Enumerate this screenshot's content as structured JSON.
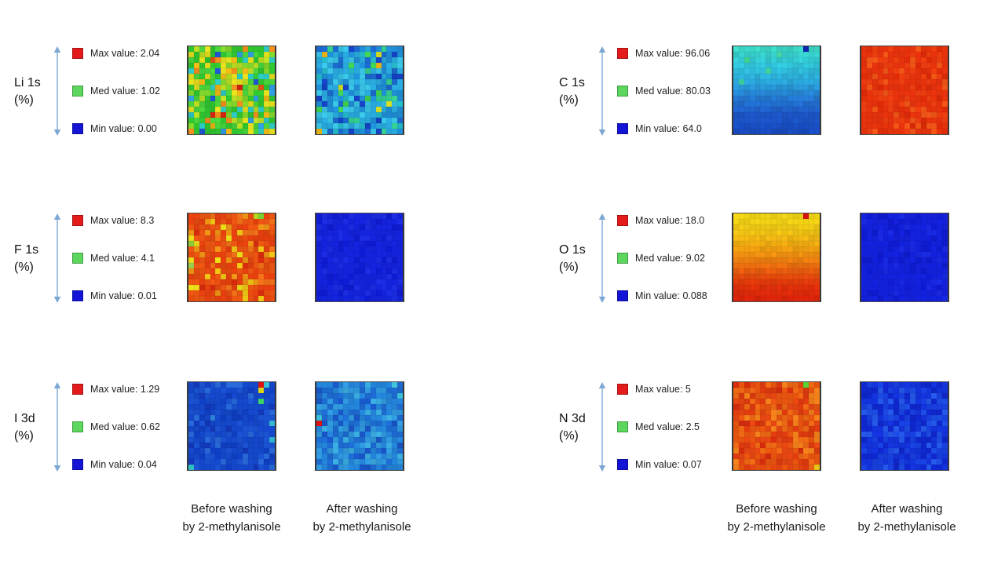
{
  "figure": {
    "captions": {
      "before_line1": "Before washing",
      "before_line2": "by 2-methylanisole",
      "after_line1": "After washing",
      "after_line2": "by 2-methylanisole"
    },
    "arrow_color": "#7aa7d4"
  },
  "chart_data": {
    "type": "heatmap",
    "description": "XPS elemental surface mapping (atomic %) before and after washing by 2-methylanisole; six elements, each with a before/after 16x16 color map and a max/med/min legend",
    "legend_position": "left of each map pair",
    "columns_order": [
      [
        "Li 1s",
        "F 1s",
        "I 3d"
      ],
      [
        "C 1s",
        "O 1s",
        "N 3d"
      ]
    ],
    "panels": [
      {
        "element": "Li 1s",
        "unit": "(%)",
        "max": 2.04,
        "med": 1.02,
        "min": 0.0,
        "legend": [
          {
            "color": "#e31b1b",
            "label": "Max value: 2.04"
          },
          {
            "color": "#5cd65c",
            "label": "Med value: 1.02"
          },
          {
            "color": "#1414d6",
            "label": "Min value: 0.00"
          }
        ],
        "before": {
          "pattern": "random",
          "grid": [
            16,
            16
          ],
          "seed": 101,
          "jitter": 0.05,
          "colors": [
            [
              "#2fc32f",
              0.26
            ],
            [
              "#49d23b",
              0.14
            ],
            [
              "#7fd42a",
              0.1
            ],
            [
              "#b8dc22",
              0.08
            ],
            [
              "#e0dc1e",
              0.1
            ],
            [
              "#eab414",
              0.05
            ],
            [
              "#ee8c1c",
              0.05
            ],
            [
              "#e05514",
              0.025
            ],
            [
              "#cc2310",
              0.025
            ],
            [
              "#2cc8c0",
              0.1
            ],
            [
              "#2f9ddf",
              0.05
            ],
            [
              "#1e55d2",
              0.045
            ]
          ],
          "special": []
        },
        "after": {
          "pattern": "random",
          "grid": [
            16,
            16
          ],
          "seed": 102,
          "jitter": 0.05,
          "colors": [
            [
              "#28a8dc",
              0.26
            ],
            [
              "#1e8ed6",
              0.2
            ],
            [
              "#38c2e4",
              0.18
            ],
            [
              "#1a68cc",
              0.12
            ],
            [
              "#1542c4",
              0.07
            ],
            [
              "#24b8c8",
              0.06
            ],
            [
              "#33cc8e",
              0.04
            ],
            [
              "#3ed052",
              0.03
            ],
            [
              "#d2dc24",
              0.02
            ],
            [
              "#eeb818",
              0.01
            ]
          ],
          "special": []
        }
      },
      {
        "element": "F 1s",
        "unit": "(%)",
        "max": 8.3,
        "med": 4.1,
        "min": 0.01,
        "legend": [
          {
            "color": "#e31b1b",
            "label": "Max value: 8.3"
          },
          {
            "color": "#5cd65c",
            "label": "Med value: 4.1"
          },
          {
            "color": "#1414d6",
            "label": "Min value: 0.01"
          }
        ],
        "before": {
          "pattern": "random",
          "grid": [
            16,
            16
          ],
          "seed": 103,
          "jitter": 0.04,
          "colors": [
            [
              "#e6400e",
              0.3
            ],
            [
              "#ec5512",
              0.22
            ],
            [
              "#e24a0f",
              0.16
            ],
            [
              "#f07018",
              0.12
            ],
            [
              "#ec9214",
              0.07
            ],
            [
              "#ecc214",
              0.06
            ],
            [
              "#e8da18",
              0.03
            ],
            [
              "#d62c0c",
              0.04
            ]
          ],
          "special": [
            [
              0,
              13,
              "#7cd22c"
            ],
            [
              0,
              12,
              "#b4d81e"
            ],
            [
              5,
              0,
              "#8ccc3a"
            ],
            [
              9,
              0,
              "#9acc50"
            ]
          ]
        },
        "after": {
          "pattern": "random",
          "grid": [
            16,
            16
          ],
          "seed": 104,
          "jitter": 0.03,
          "colors": [
            [
              "#1423dc",
              0.6
            ],
            [
              "#1b2ce2",
              0.22
            ],
            [
              "#0f1bd2",
              0.18
            ]
          ],
          "special": []
        }
      },
      {
        "element": "I 3d",
        "unit": "(%)",
        "max": 1.29,
        "med": 0.62,
        "min": 0.04,
        "legend": [
          {
            "color": "#e31b1b",
            "label": "Max value: 1.29"
          },
          {
            "color": "#5cd65c",
            "label": "Med value: 0.62"
          },
          {
            "color": "#1414d6",
            "label": "Min value: 0.04"
          }
        ],
        "before": {
          "pattern": "random",
          "grid": [
            16,
            16
          ],
          "seed": 105,
          "jitter": 0.04,
          "colors": [
            [
              "#1447ca",
              0.5
            ],
            [
              "#1a52d2",
              0.22
            ],
            [
              "#0f3ec2",
              0.14
            ],
            [
              "#2767d6",
              0.08
            ],
            [
              "#1238b8",
              0.06
            ]
          ],
          "special": [
            [
              0,
              13,
              "#e01212"
            ],
            [
              1,
              13,
              "#dcd816"
            ],
            [
              3,
              13,
              "#3cd468"
            ],
            [
              0,
              14,
              "#38c4d4"
            ],
            [
              7,
              15,
              "#34b8d4"
            ],
            [
              10,
              15,
              "#2fb0d0"
            ],
            [
              15,
              0,
              "#2fc0c4"
            ],
            [
              6,
              4,
              "#2f80d8"
            ]
          ]
        },
        "after": {
          "pattern": "random",
          "grid": [
            16,
            16
          ],
          "seed": 106,
          "jitter": 0.05,
          "colors": [
            [
              "#2383d8",
              0.3
            ],
            [
              "#1d6bd2",
              0.24
            ],
            [
              "#2f97dc",
              0.22
            ],
            [
              "#1856c8",
              0.14
            ],
            [
              "#3aaade",
              0.1
            ]
          ],
          "special": [
            [
              7,
              0,
              "#e01212"
            ],
            [
              0,
              14,
              "#42c6de"
            ],
            [
              2,
              15,
              "#3cc0da"
            ],
            [
              6,
              0,
              "#38c0d8"
            ]
          ]
        }
      },
      {
        "element": "C 1s",
        "unit": "(%)",
        "max": 96.06,
        "med": 80.03,
        "min": 64.0,
        "legend": [
          {
            "color": "#e31b1b",
            "label": "Max value: 96.06"
          },
          {
            "color": "#5cd65c",
            "label": "Med value: 80.03"
          },
          {
            "color": "#1414d6",
            "label": "Min value: 64.0"
          }
        ],
        "before": {
          "pattern": "gradient",
          "grid": [
            16,
            16
          ],
          "seed": 107,
          "jitter": 0.06,
          "stops": [
            "#3ad6c6",
            "#30c4da",
            "#2aa6da",
            "#2478d2",
            "#1c56c8",
            "#184cc2"
          ],
          "special": [
            [
              0,
              13,
              "#1026ae"
            ],
            [
              2,
              2,
              "#3ed292"
            ],
            [
              4,
              6,
              "#40d49a"
            ],
            [
              1,
              8,
              "#44d6a4"
            ],
            [
              6,
              1,
              "#38cc9e"
            ]
          ]
        },
        "after": {
          "pattern": "random",
          "grid": [
            16,
            16
          ],
          "seed": 108,
          "jitter": 0.03,
          "colors": [
            [
              "#e6320c",
              0.46
            ],
            [
              "#ee3e10",
              0.28
            ],
            [
              "#dd2a08",
              0.14
            ],
            [
              "#f05516",
              0.12
            ]
          ],
          "special": []
        }
      },
      {
        "element": "O 1s",
        "unit": "(%)",
        "max": 18.0,
        "med": 9.02,
        "min": 0.088,
        "legend": [
          {
            "color": "#e31b1b",
            "label": "Max value: 18.0"
          },
          {
            "color": "#5cd65c",
            "label": "Med value: 9.02"
          },
          {
            "color": "#1414d6",
            "label": "Min value: 0.088"
          }
        ],
        "before": {
          "pattern": "gradient",
          "grid": [
            16,
            16
          ],
          "seed": 109,
          "jitter": 0.05,
          "stops": [
            "#eed214",
            "#f0c814",
            "#eeaa10",
            "#ee8810",
            "#e85c0e",
            "#e0320a",
            "#dc240a"
          ],
          "special": [
            [
              0,
              13,
              "#d81212"
            ]
          ]
        },
        "after": {
          "pattern": "random",
          "grid": [
            16,
            16
          ],
          "seed": 110,
          "jitter": 0.03,
          "colors": [
            [
              "#1321dc",
              0.68
            ],
            [
              "#0f1bd0",
              0.18
            ],
            [
              "#1929e2",
              0.14
            ]
          ],
          "special": []
        }
      },
      {
        "element": "N 3d",
        "unit": "(%)",
        "max": 5,
        "med": 2.5,
        "min": 0.07,
        "legend": [
          {
            "color": "#e31b1b",
            "label": "Max value: 5"
          },
          {
            "color": "#5cd65c",
            "label": "Med value: 2.5"
          },
          {
            "color": "#1414d6",
            "label": "Min value: 0.07"
          }
        ],
        "before": {
          "pattern": "random",
          "grid": [
            16,
            16
          ],
          "seed": 111,
          "jitter": 0.04,
          "colors": [
            [
              "#e8540f",
              0.26
            ],
            [
              "#e64612",
              0.22
            ],
            [
              "#ee6814",
              0.2
            ],
            [
              "#dd3a0e",
              0.16
            ],
            [
              "#f07e1a",
              0.12
            ],
            [
              "#d42c0c",
              0.04
            ]
          ],
          "special": [
            [
              0,
              13,
              "#58d434"
            ],
            [
              15,
              15,
              "#e8c414"
            ]
          ]
        },
        "after": {
          "pattern": "random",
          "grid": [
            16,
            16
          ],
          "seed": 112,
          "jitter": 0.04,
          "colors": [
            [
              "#1333dc",
              0.34
            ],
            [
              "#1840e0",
              0.24
            ],
            [
              "#0f27ce",
              0.2
            ],
            [
              "#1d4ce4",
              0.14
            ],
            [
              "#2458e8",
              0.08
            ]
          ],
          "special": []
        }
      }
    ]
  }
}
